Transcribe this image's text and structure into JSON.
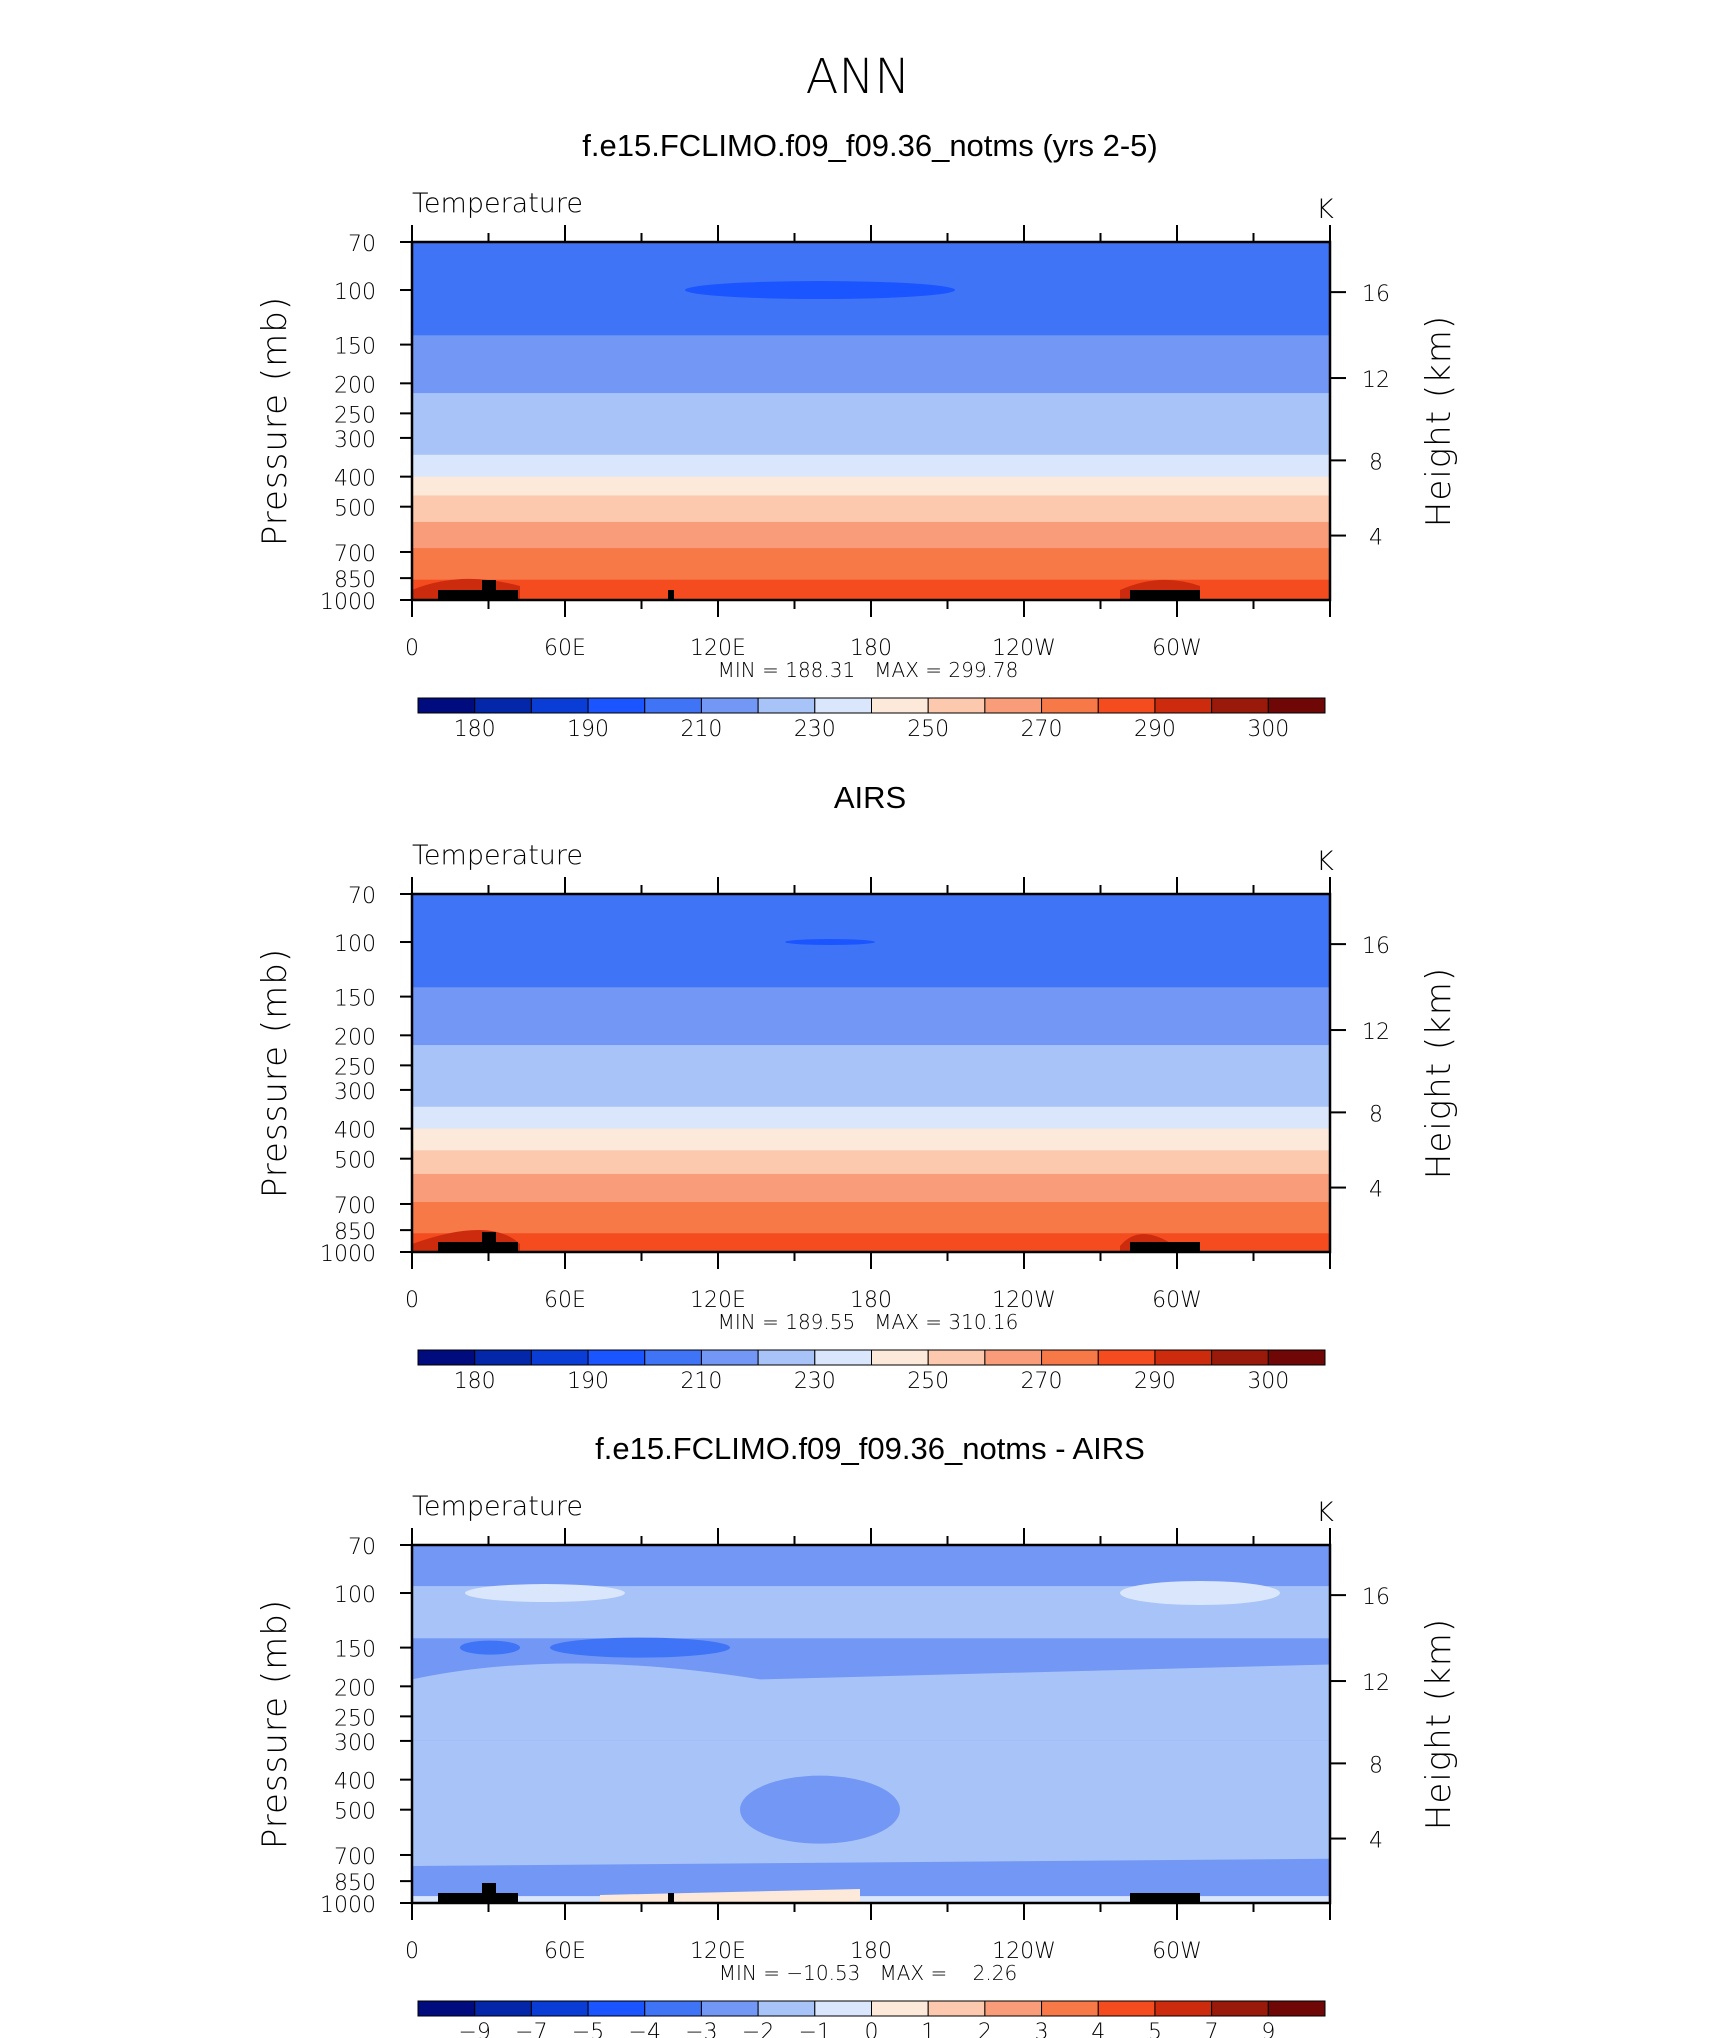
{
  "figure_title": "ANN",
  "chart_data": [
    {
      "type": "heatmap",
      "title": "f.e15.FCLIMO.f09_f09.36_notms (yrs 2-5)",
      "variable": "Temperature",
      "units": "K",
      "ylabel": "Pressure (mb)",
      "ylabel_right": "Height (km)",
      "x_ticks": [
        "0",
        "60E",
        "120E",
        "180",
        "120W",
        "60W"
      ],
      "y_ticks": [
        "70",
        "100",
        "150",
        "200",
        "250",
        "300",
        "400",
        "500",
        "700",
        "850",
        "1000"
      ],
      "y2_ticks": [
        "16",
        "12",
        "8",
        "4"
      ],
      "stats_label": "MIN = 188.31   MAX = 299.78",
      "min": 188.31,
      "max": 299.78,
      "colorbar_labels": [
        "180",
        "190",
        "210",
        "230",
        "250",
        "270",
        "290",
        "300"
      ],
      "levels_from_top": [
        {
          "p": 70,
          "temp": 205
        },
        {
          "p": 120,
          "temp": 208
        },
        {
          "p": 140,
          "temp": 213
        },
        {
          "p": 175,
          "temp": 218
        },
        {
          "p": 215,
          "temp": 222
        },
        {
          "p": 270,
          "temp": 228
        },
        {
          "p": 340,
          "temp": 238
        },
        {
          "p": 400,
          "temp": 248
        },
        {
          "p": 460,
          "temp": 253
        },
        {
          "p": 560,
          "temp": 262
        },
        {
          "p": 680,
          "temp": 270
        },
        {
          "p": 860,
          "temp": 280
        },
        {
          "p": 960,
          "temp": 287
        }
      ]
    },
    {
      "type": "heatmap",
      "title": "AIRS",
      "variable": "Temperature",
      "units": "K",
      "ylabel": "Pressure (mb)",
      "ylabel_right": "Height (km)",
      "x_ticks": [
        "0",
        "60E",
        "120E",
        "180",
        "120W",
        "60W"
      ],
      "y_ticks": [
        "70",
        "100",
        "150",
        "200",
        "250",
        "300",
        "400",
        "500",
        "700",
        "850",
        "1000"
      ],
      "y2_ticks": [
        "16",
        "12",
        "8",
        "4"
      ],
      "stats_label": "MIN = 189.55   MAX = 310.16",
      "min": 189.55,
      "max": 310.16,
      "colorbar_labels": [
        "180",
        "190",
        "210",
        "230",
        "250",
        "270",
        "290",
        "300"
      ],
      "levels_from_top": [
        {
          "p": 70,
          "temp": 206
        },
        {
          "p": 140,
          "temp": 213
        },
        {
          "p": 175,
          "temp": 218
        },
        {
          "p": 215,
          "temp": 222
        },
        {
          "p": 275,
          "temp": 228
        },
        {
          "p": 340,
          "temp": 238
        },
        {
          "p": 400,
          "temp": 248
        },
        {
          "p": 470,
          "temp": 253
        },
        {
          "p": 560,
          "temp": 262
        },
        {
          "p": 690,
          "temp": 270
        },
        {
          "p": 870,
          "temp": 280
        },
        {
          "p": 970,
          "temp": 287
        }
      ]
    },
    {
      "type": "heatmap",
      "title": "f.e15.FCLIMO.f09_f09.36_notms - AIRS",
      "variable": "Temperature",
      "units": "K",
      "ylabel": "Pressure (mb)",
      "ylabel_right": "Height (km)",
      "x_ticks": [
        "0",
        "60E",
        "120E",
        "180",
        "120W",
        "60W"
      ],
      "y_ticks": [
        "70",
        "100",
        "150",
        "200",
        "250",
        "300",
        "400",
        "500",
        "700",
        "850",
        "1000"
      ],
      "y2_ticks": [
        "16",
        "12",
        "8",
        "4"
      ],
      "stats_label": "MIN = −10.53   MAX =    2.26",
      "min": -10.53,
      "max": 2.26,
      "colorbar_labels": [
        "−9",
        "−7",
        "−5",
        "−4",
        "−3",
        "−2",
        "−1",
        "0",
        "1",
        "2",
        "3",
        "4",
        "5",
        "7",
        "9"
      ],
      "levels_from_top": [
        {
          "p": 70,
          "temp": -2.5
        },
        {
          "p": 95,
          "temp": -1.5
        },
        {
          "p": 140,
          "temp": -2.5
        },
        {
          "p": 190,
          "temp": -2.5
        },
        {
          "p": 300,
          "temp": -1.5
        },
        {
          "p": 720,
          "temp": -1.5
        },
        {
          "p": 830,
          "temp": -2.5
        },
        {
          "p": 950,
          "temp": -0.5
        }
      ]
    }
  ],
  "colors": {
    "temp_scale": [
      "#000c7d",
      "#0426a8",
      "#0a3dd6",
      "#1a55ff",
      "#3f74f7",
      "#7297f5",
      "#a8c3f8",
      "#d9e6fb",
      "#fde9d9",
      "#fcc8ae",
      "#f99c79",
      "#f67947",
      "#f54c1f",
      "#cc2c0d",
      "#991a0a",
      "#6f0707"
    ],
    "diff_scale": [
      "#000c7d",
      "#0426a8",
      "#0a3dd6",
      "#1a55ff",
      "#3f74f7",
      "#7297f5",
      "#a8c3f8",
      "#d9e6fb",
      "#fde9d9",
      "#fcc8ae",
      "#f99c79",
      "#f67947",
      "#f54c1f",
      "#cc2c0d",
      "#991a0a",
      "#6f0707"
    ]
  }
}
